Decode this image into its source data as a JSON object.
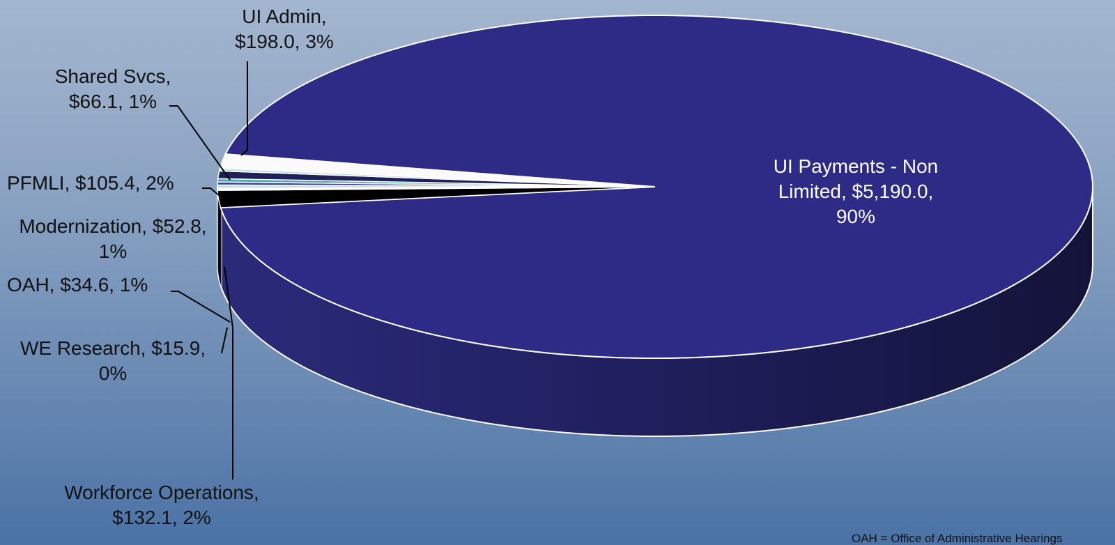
{
  "chart_data": {
    "type": "pie",
    "style": "3d",
    "unit": "$",
    "slices": [
      {
        "name": "UI Payments - Non Limited",
        "value": 5190.0,
        "percent": 90,
        "color": "#2d2b85",
        "label_lines": [
          "UI Payments - Non",
          "Limited, $5,190.0,",
          "90%"
        ]
      },
      {
        "name": "Workforce Operations",
        "value": 132.1,
        "percent": 2,
        "color": "#000000",
        "label_lines": [
          "Workforce Operations,",
          "$132.1, 2%"
        ]
      },
      {
        "name": "WE Research",
        "value": 15.9,
        "percent": 0,
        "color": "#ffffff",
        "label_lines": [
          "WE Research, $15.9,",
          "0%"
        ]
      },
      {
        "name": "OAH",
        "value": 34.6,
        "percent": 1,
        "color": "#c9dde8",
        "label_lines": [
          "OAH, $34.6, 1%"
        ]
      },
      {
        "name": "Modernization",
        "value": 52.8,
        "percent": 1,
        "color": "#3c3aa4",
        "label_lines": [
          "Modernization, $52.8,",
          "1%"
        ]
      },
      {
        "name": "PFMLI",
        "value": 105.4,
        "percent": 2,
        "color": "#4aa9ad",
        "label_lines": [
          "PFMLI, $105.4, 2%"
        ]
      },
      {
        "name": "Shared Svcs",
        "value": 66.1,
        "percent": 1,
        "color": "#20215b",
        "label_lines": [
          "Shared Svcs,",
          "$66.1, 1%"
        ]
      },
      {
        "name": "UI Admin",
        "value": 198.0,
        "percent": 3,
        "color": "#bfe0e3",
        "label_lines": [
          "UI Admin,",
          "$198.0, 3%"
        ]
      }
    ],
    "extra_white_wedge_color": "#fafafa",
    "legend": "none",
    "grid": false
  },
  "footnote": "OAH = Office of Administrative Hearings"
}
